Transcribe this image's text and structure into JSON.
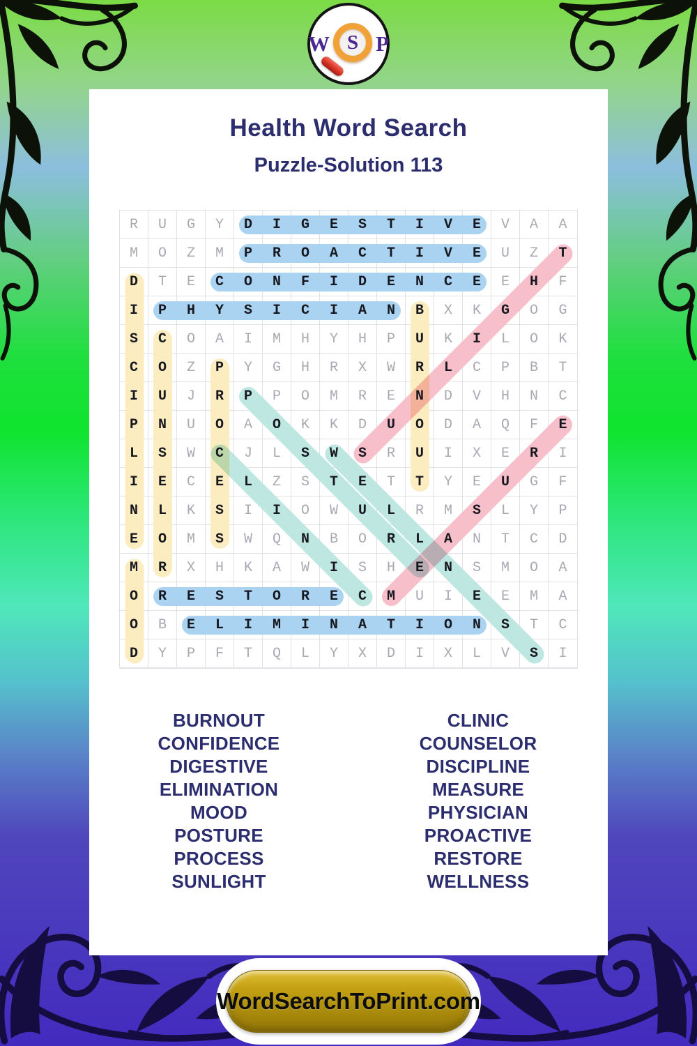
{
  "header": {
    "logo_letters": [
      "W",
      "S",
      "P"
    ],
    "title": "Health Word Search",
    "subtitle": "Puzzle-Solution 113"
  },
  "footer": {
    "button_label": "WordSearchToPrint.com"
  },
  "colors": {
    "navy_text": "#2b2d6e",
    "logo_purple": "#4a2890",
    "grid_line": "#e2e2e6",
    "grid_letter_gray": "#a8a8b2",
    "grid_letter_solved": "#17171f",
    "highlight_blue": "#a9d3f1",
    "highlight_yellow": "#fbedc0",
    "highlight_pink": "#f6bfca",
    "highlight_teal": "#bfe7e2",
    "button_gold": "#b8960f"
  },
  "puzzle": {
    "grid_size": 16,
    "rows": [
      "RUGYDIGESTIVEVAA",
      "MOZMPROACTIVEUZT",
      "DTECONFIDENCEEHF",
      "IPHYSICIANBXKGOG",
      "SCOAIMHYHPUKILOK",
      "COZPYGHRXWRLCPBT",
      "IUJRPPOMRENDVHNC",
      "PNUOAOKKDUODAQFE",
      "LSWCJLSWSRUIXERI",
      "IECELZSTETTYEUGF",
      "NLKSIIOWULRMSLYP",
      "EOMSWQNBORLANTCD",
      "MRXHKAWISHENSMOA",
      "ORESTORECMUIEEMA",
      "OBELIMINATIONSTC",
      "DYPFTQLYXDIXLVSI"
    ],
    "solutions": [
      {
        "word": "DIGESTIVE",
        "row": 1,
        "col": 5,
        "dir": "right",
        "color": "blue"
      },
      {
        "word": "PROACTIVE",
        "row": 2,
        "col": 5,
        "dir": "right",
        "color": "blue"
      },
      {
        "word": "CONFIDENCE",
        "row": 3,
        "col": 4,
        "dir": "right",
        "color": "blue"
      },
      {
        "word": "PHYSICIAN",
        "row": 4,
        "col": 2,
        "dir": "right",
        "color": "blue"
      },
      {
        "word": "RESTORE",
        "row": 14,
        "col": 2,
        "dir": "right",
        "color": "blue"
      },
      {
        "word": "ELIMINATION",
        "row": 15,
        "col": 3,
        "dir": "right",
        "color": "blue"
      },
      {
        "word": "DISCIPLINE",
        "row": 3,
        "col": 1,
        "dir": "down",
        "color": "yellow"
      },
      {
        "word": "MOOD",
        "row": 13,
        "col": 1,
        "dir": "down",
        "color": "yellow"
      },
      {
        "word": "COUNSELOR",
        "row": 5,
        "col": 2,
        "dir": "down",
        "color": "yellow"
      },
      {
        "word": "PROCESS",
        "row": 6,
        "col": 4,
        "dir": "down",
        "color": "yellow"
      },
      {
        "word": "BURNOUT",
        "row": 4,
        "col": 11,
        "dir": "down",
        "color": "yellow"
      },
      {
        "word": "SUNLIGHT",
        "row": 9,
        "col": 9,
        "dir": "up-right",
        "color": "pink"
      },
      {
        "word": "MEASURE",
        "row": 14,
        "col": 10,
        "dir": "up-right",
        "color": "pink"
      },
      {
        "word": "POSTURE",
        "row": 7,
        "col": 5,
        "dir": "down-right",
        "color": "teal"
      },
      {
        "word": "CLINIC",
        "row": 9,
        "col": 4,
        "dir": "down-right",
        "color": "teal"
      },
      {
        "word": "WELLNESS",
        "row": 9,
        "col": 8,
        "dir": "down-right",
        "color": "teal"
      }
    ]
  },
  "word_list": {
    "left": [
      "BURNOUT",
      "CONFIDENCE",
      "DIGESTIVE",
      "ELIMINATION",
      "MOOD",
      "POSTURE",
      "PROCESS",
      "SUNLIGHT"
    ],
    "right": [
      "CLINIC",
      "COUNSELOR",
      "DISCIPLINE",
      "MEASURE",
      "PHYSICIAN",
      "PROACTIVE",
      "RESTORE",
      "WELLNESS"
    ]
  }
}
